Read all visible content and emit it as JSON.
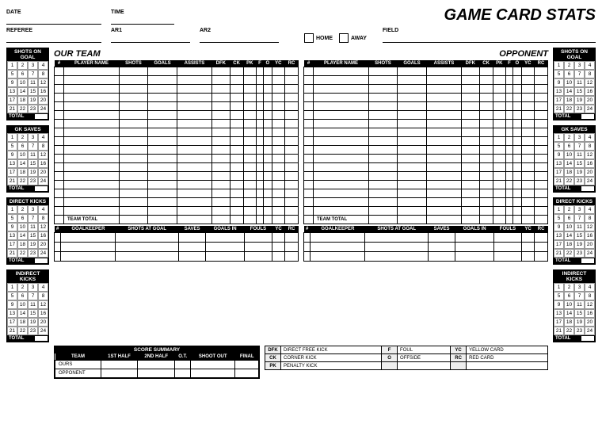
{
  "title": "GAME CARD STATS",
  "topFields": {
    "date": "DATE",
    "time": "TIME",
    "referee": "REFEREE",
    "ar1": "AR1",
    "ar2": "AR2",
    "home": "HOME",
    "away": "AWAY",
    "field": "FIELD"
  },
  "teams": {
    "ours": "OUR TEAM",
    "opponent": "OPPONENT"
  },
  "tallyBoxes": [
    "SHOTS ON GOAL",
    "GK SAVES",
    "DIRECT KICKS",
    "INDIRECT KICKS"
  ],
  "tallyNumbers": [
    1,
    2,
    3,
    4,
    5,
    6,
    7,
    8,
    9,
    10,
    11,
    12,
    13,
    14,
    15,
    16,
    17,
    18,
    19,
    20,
    21,
    22,
    23,
    24
  ],
  "tallyTotal": "TOTAL",
  "playerCols": [
    "#",
    "PLAYER NAME",
    "SHOTS",
    "GOALS",
    "ASSISTS",
    "DFK",
    "CK",
    "PK",
    "F",
    "O",
    "YC",
    "RC"
  ],
  "playerRows": 17,
  "teamTotal": "TEAM TOTAL",
  "gkCols": [
    "#",
    "GOALKEEPER",
    "SHOTS AT GOAL",
    "SAVES",
    "GOALS IN",
    "FOULS",
    "YC",
    "RC"
  ],
  "gkRows": 3,
  "scoreSummary": {
    "title": "SCORE SUMMARY",
    "cols": [
      "TEAM",
      "1ST HALF",
      "2ND HALF",
      "O.T.",
      "SHOOT OUT",
      "FINAL"
    ],
    "rows": [
      "OURS",
      "OPPONENT"
    ]
  },
  "legend": [
    [
      "DFK",
      "DIRECT FREE KICK",
      "F",
      "FOUL",
      "YC",
      "YELLOW CARD"
    ],
    [
      "CK",
      "CORNER KICK",
      "O",
      "OFFSIDE",
      "RC",
      "RED CARD"
    ],
    [
      "PK",
      "PENALTY KICK",
      "",
      "",
      "",
      ""
    ]
  ]
}
